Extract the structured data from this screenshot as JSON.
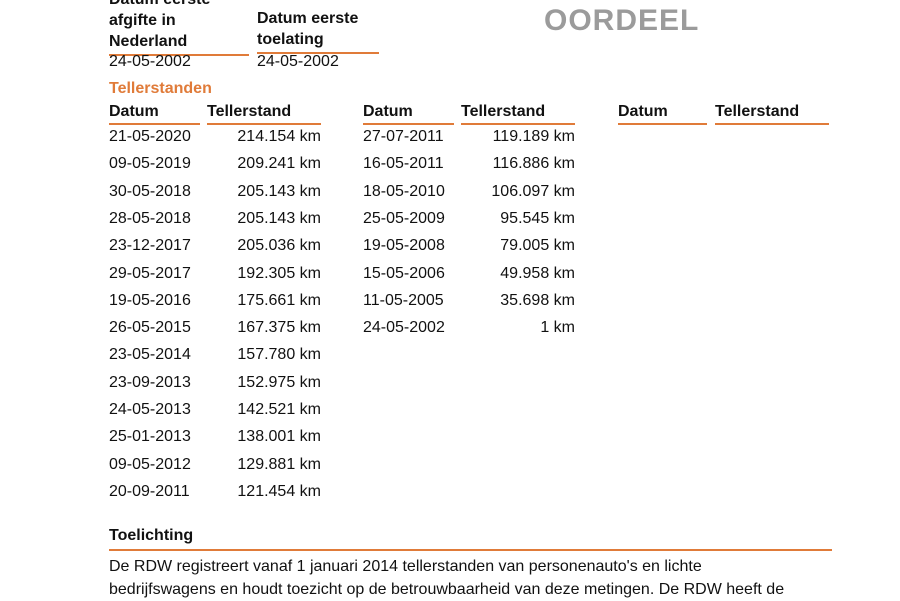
{
  "watermark": "OORDEEL",
  "first_issue": {
    "label_line1": "Datum eerste",
    "label_line2": "afgifte in",
    "label_line3": "Nederland",
    "value": "24-05-2002"
  },
  "first_admission": {
    "label_line1": "Datum eerste",
    "label_line2": "toelating",
    "value": "24-05-2002"
  },
  "tellerstanden": {
    "title": "Tellerstanden",
    "col_date": "Datum",
    "col_reading": "Tellerstand",
    "column1": [
      {
        "date": "21-05-2020",
        "km": "214.154 km"
      },
      {
        "date": "09-05-2019",
        "km": "209.241 km"
      },
      {
        "date": "30-05-2018",
        "km": "205.143 km"
      },
      {
        "date": "28-05-2018",
        "km": "205.143 km"
      },
      {
        "date": "23-12-2017",
        "km": "205.036 km"
      },
      {
        "date": "29-05-2017",
        "km": "192.305 km"
      },
      {
        "date": "19-05-2016",
        "km": "175.661 km"
      },
      {
        "date": "26-05-2015",
        "km": "167.375 km"
      },
      {
        "date": "23-05-2014",
        "km": "157.780 km"
      },
      {
        "date": "23-09-2013",
        "km": "152.975 km"
      },
      {
        "date": "24-05-2013",
        "km": "142.521 km"
      },
      {
        "date": "25-01-2013",
        "km": "138.001 km"
      },
      {
        "date": "09-05-2012",
        "km": "129.881 km"
      },
      {
        "date": "20-09-2011",
        "km": "121.454 km"
      }
    ],
    "column2": [
      {
        "date": "27-07-2011",
        "km": "119.189 km"
      },
      {
        "date": "16-05-2011",
        "km": "116.886 km"
      },
      {
        "date": "18-05-2010",
        "km": "106.097 km"
      },
      {
        "date": "25-05-2009",
        "km": "95.545 km"
      },
      {
        "date": "19-05-2008",
        "km": "79.005 km"
      },
      {
        "date": "15-05-2006",
        "km": "49.958 km"
      },
      {
        "date": "11-05-2005",
        "km": "35.698 km"
      },
      {
        "date": "24-05-2002",
        "km": "1 km"
      }
    ]
  },
  "toelichting": {
    "title": "Toelichting",
    "line1": "De RDW registreert vanaf 1 januari 2014 tellerstanden van personenauto's en lichte",
    "line2": "bedrijfswagens en houdt toezicht op de betrouwbaarheid van deze metingen. De RDW heeft de"
  },
  "colors": {
    "accent": "#e07b39",
    "watermark": "#9b9b9b"
  }
}
